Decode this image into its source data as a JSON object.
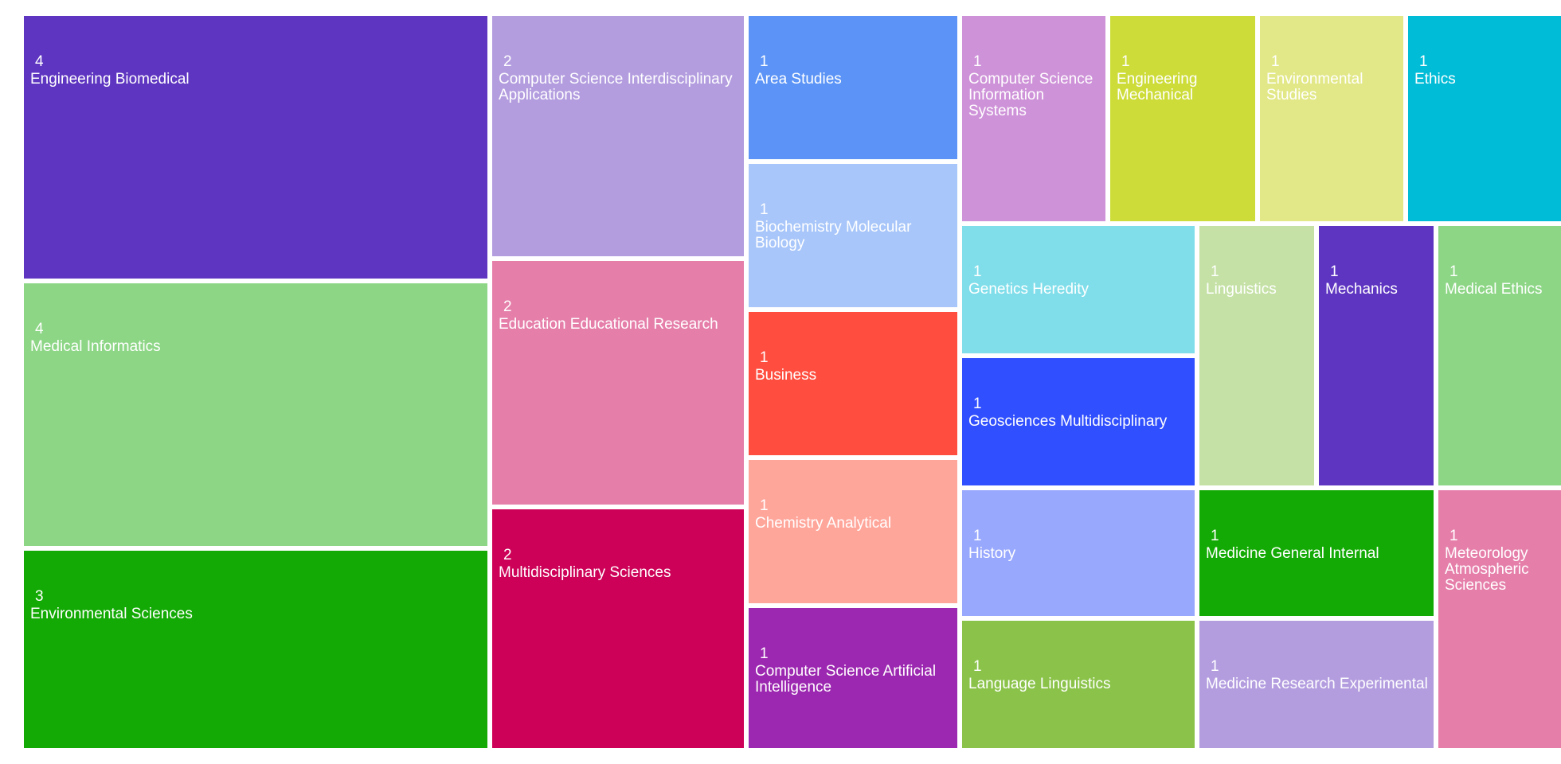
{
  "chart_data": {
    "type": "treemap",
    "items": [
      {
        "label": "Engineering Biomedical",
        "value": 4,
        "color": "#5e35c1"
      },
      {
        "label": "Medical Informatics",
        "value": 4,
        "color": "#8dd686"
      },
      {
        "label": "Environmental Sciences",
        "value": 3,
        "color": "#14aa05"
      },
      {
        "label": "Computer Science Interdisciplinary Applications",
        "value": 2,
        "color": "#b39ddf"
      },
      {
        "label": "Education Educational Research",
        "value": 2,
        "color": "#e57faa"
      },
      {
        "label": "Multidisciplinary Sciences",
        "value": 2,
        "color": "#cd0157"
      },
      {
        "label": "Area Studies",
        "value": 1,
        "color": "#5b94f6"
      },
      {
        "label": "Biochemistry Molecular Biology",
        "value": 1,
        "color": "#a8c6f9"
      },
      {
        "label": "Business",
        "value": 1,
        "color": "#ff4e3f"
      },
      {
        "label": "Chemistry Analytical",
        "value": 1,
        "color": "#ffa69b"
      },
      {
        "label": "Computer Science Artificial Intelligence",
        "value": 1,
        "color": "#9c27b0"
      },
      {
        "label": "Computer Science Information Systems",
        "value": 1,
        "color": "#ce92d8"
      },
      {
        "label": "Engineering Mechanical",
        "value": 1,
        "color": "#cddc39"
      },
      {
        "label": "Environmental Studies",
        "value": 1,
        "color": "#e2e887"
      },
      {
        "label": "Ethics",
        "value": 1,
        "color": "#00bcd7"
      },
      {
        "label": "Genetics Heredity",
        "value": 1,
        "color": "#80deea"
      },
      {
        "label": "Geosciences Multidisciplinary",
        "value": 1,
        "color": "#304ffe"
      },
      {
        "label": "History",
        "value": 1,
        "color": "#98a8fd"
      },
      {
        "label": "Language Linguistics",
        "value": 1,
        "color": "#8bc34a"
      },
      {
        "label": "Linguistics",
        "value": 1,
        "color": "#c5e1a6"
      },
      {
        "label": "Mechanics",
        "value": 1,
        "color": "#5e35c1"
      },
      {
        "label": "Medical Ethics",
        "value": 1,
        "color": "#8dd686"
      },
      {
        "label": "Medicine General Internal",
        "value": 1,
        "color": "#14aa05"
      },
      {
        "label": "Medicine Research Experimental",
        "value": 1,
        "color": "#b39ddf"
      },
      {
        "label": "Meteorology Atmospheric Sciences",
        "value": 1,
        "color": "#e57faa"
      }
    ]
  }
}
